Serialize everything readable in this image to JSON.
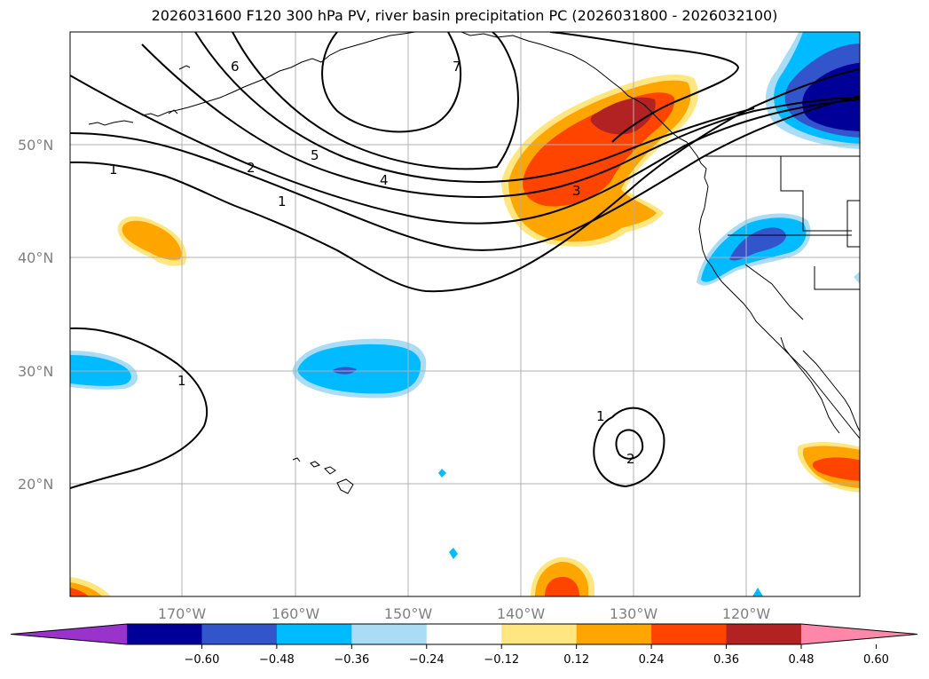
{
  "title": "2026031600 F120 300 hPa PV, river basin precipitation PC (2026031800 - 2026032100)",
  "map": {
    "lon_range": [
      -180,
      -110
    ],
    "lat_range": [
      10,
      60
    ],
    "lat_labels": [
      "50°N",
      "40°N",
      "30°N",
      "20°N"
    ],
    "lon_labels": [
      "170°W",
      "160°W",
      "150°W",
      "140°W",
      "130°W",
      "120°W"
    ],
    "grid": true,
    "coastlines": true
  },
  "pv_contours": {
    "color": "#000000",
    "labels": [
      "6",
      "7",
      "5",
      "4",
      "3",
      "2",
      "1",
      "1",
      "1",
      "1",
      "2"
    ]
  },
  "colorbar": {
    "ticks": [
      "−0.60",
      "−0.48",
      "−0.36",
      "−0.24",
      "−0.12",
      "0.12",
      "0.24",
      "0.36",
      "0.48",
      "0.60"
    ],
    "colors": [
      "#9933cc",
      "#000099",
      "#3355cc",
      "#00bbff",
      "#aaddf5",
      "#ffffff",
      "#ffe680",
      "#ffa500",
      "#ff4400",
      "#b22222",
      "#ff88aa"
    ],
    "extend": "both"
  }
}
